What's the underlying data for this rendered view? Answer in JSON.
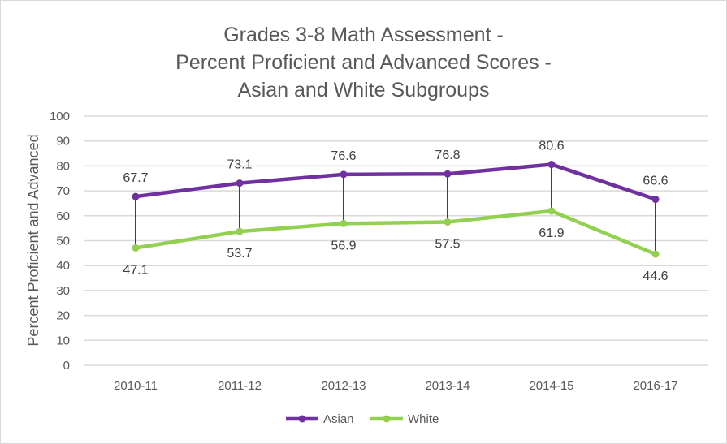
{
  "chart_data": {
    "type": "line",
    "title": [
      "Grades 3-8 Math Assessment -",
      "Percent Proficient and Advanced Scores -",
      "Asian and White Subgroups"
    ],
    "xlabel": "",
    "ylabel": "Percent Proficient and Advanced",
    "ylim": [
      0,
      100
    ],
    "yticks": [
      "0",
      "10",
      "20",
      "30",
      "40",
      "50",
      "60",
      "70",
      "80",
      "90",
      "100"
    ],
    "grid": true,
    "legend": "bottom",
    "categories": [
      "2010-11",
      "2011-12",
      "2012-13",
      "2013-14",
      "2014-15",
      "2016-17"
    ],
    "series": [
      {
        "name": "Asian",
        "color": "#7030A0",
        "values": [
          67.7,
          73.1,
          76.6,
          76.8,
          80.6,
          66.6
        ],
        "labels": [
          "67.7",
          "73.1",
          "76.6",
          "76.8",
          "80.6",
          "66.6"
        ]
      },
      {
        "name": "White",
        "color": "#92D050",
        "values": [
          47.1,
          53.7,
          56.9,
          57.5,
          61.9,
          44.6
        ],
        "labels": [
          "47.1",
          "53.7",
          "56.9",
          "57.5",
          "61.9",
          "44.6"
        ]
      }
    ],
    "high_low_lines": true
  }
}
